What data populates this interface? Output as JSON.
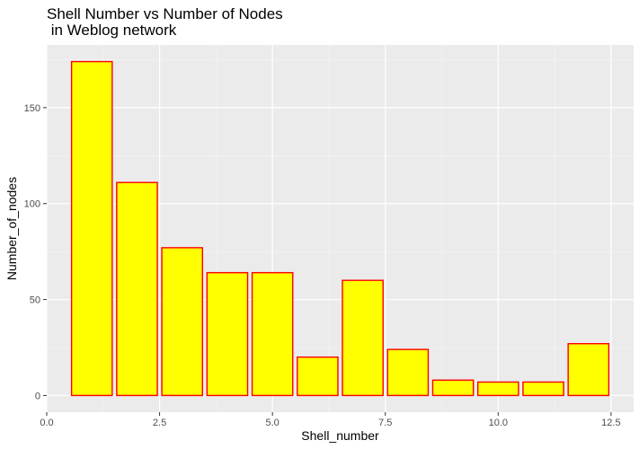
{
  "chart_data": {
    "type": "bar",
    "title_line1": "Shell Number vs Number of Nodes",
    "title_line2": " in Weblog network",
    "xlabel": "Shell_number",
    "ylabel": "Number_of_nodes",
    "x": [
      1,
      2,
      3,
      4,
      5,
      6,
      7,
      8,
      9,
      10,
      11,
      12
    ],
    "values": [
      174,
      111,
      77,
      64,
      64,
      20,
      60,
      24,
      8,
      7,
      7,
      27
    ],
    "bar_width": 0.9,
    "xlim": [
      0,
      13
    ],
    "ylim": [
      -8.7,
      182.7
    ],
    "xticks": [
      0,
      2.5,
      5,
      7.5,
      10,
      12.5
    ],
    "xtick_labels": [
      "0.0",
      "2.5",
      "5.0",
      "7.5",
      "10.0",
      "12.5"
    ],
    "yticks": [
      0,
      50,
      100,
      150
    ],
    "ytick_labels": [
      "0",
      "50",
      "100",
      "150"
    ],
    "grid": true,
    "colors": {
      "bar_fill": "#ffff00",
      "bar_stroke": "#ff0000",
      "panel_bg": "#ebebeb",
      "grid_major": "#ffffff",
      "grid_minor": "#f5f5f5",
      "axis_text": "#4d4d4d",
      "tick": "#333333"
    }
  }
}
